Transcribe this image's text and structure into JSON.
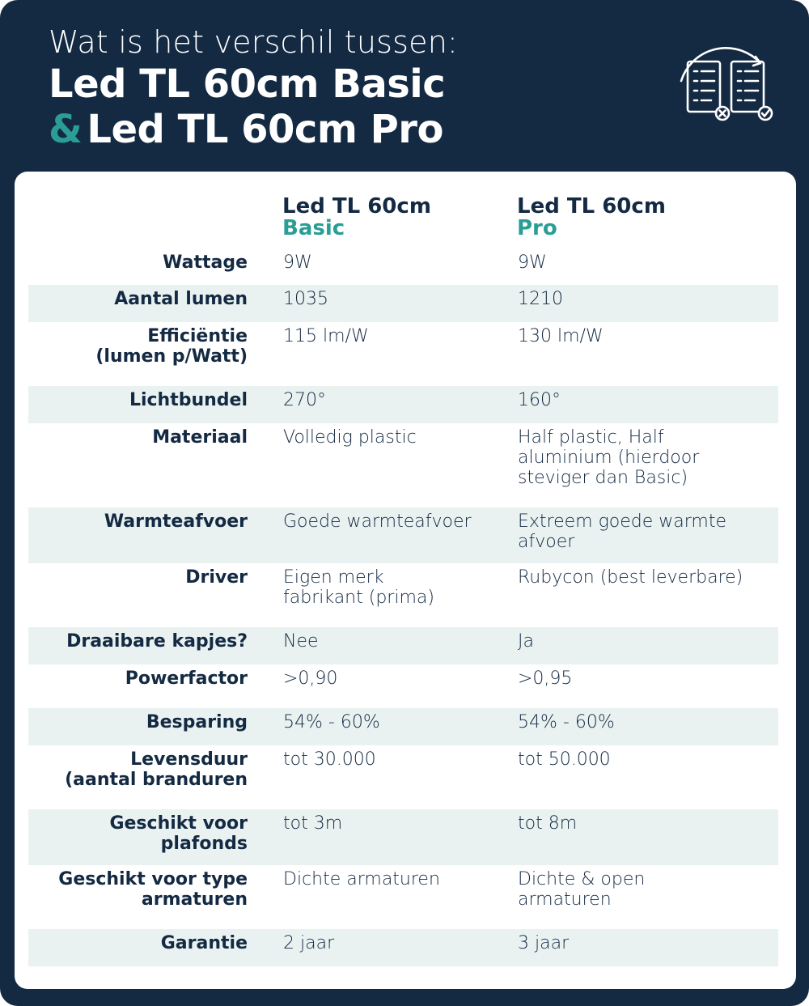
{
  "header": {
    "subtitle": "Wat is het verschil tussen:",
    "title_line1": "Led TL 60cm Basic",
    "amp": "&",
    "title_line2": "Led TL 60cm Pro",
    "icon": "checklist-compare-icon"
  },
  "columns": {
    "basic": {
      "line1": "Led TL 60cm",
      "line2": "Basic"
    },
    "pro": {
      "line1": "Led TL 60cm",
      "line2": "Pro"
    }
  },
  "colors": {
    "navy": "#142a43",
    "teal": "#2a9d95",
    "row_shade": "#e9f2f1"
  },
  "rows": [
    {
      "label": "Wattage",
      "basic": "9W",
      "pro": "9W"
    },
    {
      "label": "Aantal lumen",
      "basic": "1035",
      "pro": "1210"
    },
    {
      "label": "Efficiëntie\n(lumen p/Watt)",
      "basic": "115 lm/W",
      "pro": "130 lm/W"
    },
    {
      "label": "Lichtbundel",
      "basic": "270°",
      "pro": "160°"
    },
    {
      "label": "Materiaal",
      "basic": "Volledig plastic",
      "pro": "Half plastic, Half\naluminium (hierdoor\nsteviger dan Basic)"
    },
    {
      "label": "Warmteafvoer",
      "basic": "Goede warmteafvoer",
      "pro": "Extreem goede warmte\nafvoer"
    },
    {
      "label": "Driver",
      "basic": "Eigen merk\nfabrikant (prima)",
      "pro": "Rubycon (best leverbare)"
    },
    {
      "label": "Draaibare kapjes?",
      "basic": "Nee",
      "pro": "Ja"
    },
    {
      "label": "Powerfactor",
      "basic": ">0,90",
      "pro": ">0,95"
    },
    {
      "label": "Besparing",
      "basic": "54% - 60%",
      "pro": "54% - 60%"
    },
    {
      "label": "Levensduur\n(aantal branduren",
      "basic": "tot 30.000",
      "pro": "tot 50.000"
    },
    {
      "label": "Geschikt voor\nplafonds",
      "basic": "tot 3m",
      "pro": "tot 8m"
    },
    {
      "label": "Geschikt voor type\narmaturen",
      "basic": "Dichte armaturen",
      "pro": "Dichte & open\narmaturen"
    },
    {
      "label": "Garantie",
      "basic": "2 jaar",
      "pro": "3 jaar"
    }
  ]
}
